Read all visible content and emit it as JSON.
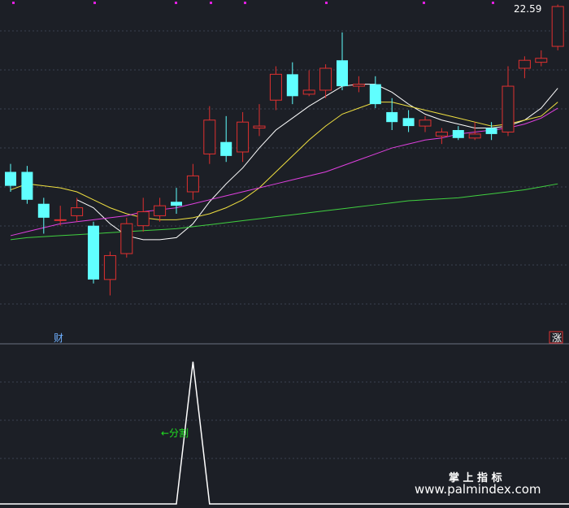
{
  "chart_data": [
    {
      "type": "candlestick",
      "title": "",
      "price_label": "22.59",
      "bottom_left_marker": "财",
      "bottom_right_marker": "涨",
      "ylim": [
        8,
        23.5
      ],
      "candles": [
        {
          "o": 15.2,
          "c": 14.5,
          "h": 15.6,
          "l": 14.2
        },
        {
          "o": 15.2,
          "c": 13.8,
          "h": 15.5,
          "l": 13.6
        },
        {
          "o": 13.6,
          "c": 12.9,
          "h": 13.9,
          "l": 12.1
        },
        {
          "o": 12.8,
          "c": 12.8,
          "h": 13.5,
          "l": 12.5
        },
        {
          "o": 13.0,
          "c": 13.4,
          "h": 13.9,
          "l": 12.7
        },
        {
          "o": 12.5,
          "c": 9.8,
          "h": 12.7,
          "l": 9.6
        },
        {
          "o": 9.8,
          "c": 11.0,
          "h": 11.2,
          "l": 9.0
        },
        {
          "o": 11.1,
          "c": 12.6,
          "h": 12.9,
          "l": 10.9
        },
        {
          "o": 12.5,
          "c": 13.2,
          "h": 13.9,
          "l": 12.2
        },
        {
          "o": 13.0,
          "c": 13.5,
          "h": 13.9,
          "l": 12.7
        },
        {
          "o": 13.7,
          "c": 13.5,
          "h": 14.4,
          "l": 13.1
        },
        {
          "o": 14.2,
          "c": 15.0,
          "h": 15.6,
          "l": 13.8
        },
        {
          "o": 16.1,
          "c": 17.8,
          "h": 18.5,
          "l": 15.6
        },
        {
          "o": 16.7,
          "c": 16.0,
          "h": 18.0,
          "l": 15.7
        },
        {
          "o": 16.2,
          "c": 17.7,
          "h": 18.2,
          "l": 15.7
        },
        {
          "o": 17.4,
          "c": 17.5,
          "h": 18.6,
          "l": 17.0
        },
        {
          "o": 18.8,
          "c": 20.1,
          "h": 20.5,
          "l": 18.3
        },
        {
          "o": 20.1,
          "c": 19.0,
          "h": 20.7,
          "l": 18.6
        },
        {
          "o": 19.1,
          "c": 19.3,
          "h": 20.3,
          "l": 19.0
        },
        {
          "o": 19.3,
          "c": 20.4,
          "h": 20.6,
          "l": 18.9
        },
        {
          "o": 20.8,
          "c": 19.5,
          "h": 22.2,
          "l": 19.3
        },
        {
          "o": 19.5,
          "c": 19.6,
          "h": 20.0,
          "l": 19.2
        },
        {
          "o": 19.6,
          "c": 18.6,
          "h": 20.0,
          "l": 18.4
        },
        {
          "o": 18.2,
          "c": 17.7,
          "h": 18.9,
          "l": 17.3
        },
        {
          "o": 17.9,
          "c": 17.5,
          "h": 18.3,
          "l": 17.2
        },
        {
          "o": 17.5,
          "c": 17.8,
          "h": 18.0,
          "l": 17.2
        },
        {
          "o": 17.0,
          "c": 17.2,
          "h": 17.4,
          "l": 16.6
        },
        {
          "o": 17.3,
          "c": 16.9,
          "h": 17.5,
          "l": 16.8
        },
        {
          "o": 16.9,
          "c": 17.1,
          "h": 17.7,
          "l": 16.8
        },
        {
          "o": 17.4,
          "c": 17.1,
          "h": 17.7,
          "l": 16.8
        },
        {
          "o": 17.2,
          "c": 19.5,
          "h": 20.5,
          "l": 17.0
        },
        {
          "o": 20.4,
          "c": 20.8,
          "h": 21.0,
          "l": 19.9
        },
        {
          "o": 20.7,
          "c": 20.9,
          "h": 21.3,
          "l": 20.5
        },
        {
          "o": 21.5,
          "c": 23.5,
          "h": 23.6,
          "l": 21.3
        }
      ],
      "ma_lines": [
        {
          "color": "#ffffff",
          "values": [
            null,
            null,
            null,
            null,
            13.8,
            13.4,
            12.6,
            12.0,
            11.8,
            11.8,
            11.9,
            12.6,
            13.7,
            14.6,
            15.4,
            16.4,
            17.3,
            17.9,
            18.5,
            19.0,
            19.5,
            19.6,
            19.6,
            19.2,
            18.6,
            18.1,
            17.8,
            17.6,
            17.4,
            17.4,
            17.5,
            17.8,
            18.4,
            19.4
          ]
        },
        {
          "color": "#f0e040",
          "values": [
            14.3,
            14.6,
            14.5,
            14.4,
            14.2,
            13.8,
            13.4,
            13.1,
            12.9,
            12.8,
            12.8,
            12.9,
            13.1,
            13.4,
            13.8,
            14.4,
            15.2,
            16.0,
            16.8,
            17.5,
            18.1,
            18.4,
            18.7,
            18.7,
            18.5,
            18.3,
            18.1,
            17.9,
            17.7,
            17.5,
            17.6,
            17.8,
            18.0,
            18.7
          ]
        },
        {
          "color": "#e040e0",
          "values": [
            12.0,
            12.2,
            12.4,
            12.6,
            12.7,
            12.8,
            12.9,
            13.0,
            13.2,
            13.3,
            13.4,
            13.6,
            13.8,
            14.0,
            14.2,
            14.4,
            14.6,
            14.8,
            15.0,
            15.2,
            15.5,
            15.8,
            16.1,
            16.4,
            16.6,
            16.8,
            16.9,
            17.1,
            17.2,
            17.3,
            17.4,
            17.6,
            17.9,
            18.4
          ]
        },
        {
          "color": "#40d040",
          "values": [
            11.8,
            11.9,
            11.95,
            12.0,
            12.05,
            12.1,
            12.15,
            12.2,
            12.25,
            12.3,
            12.35,
            12.45,
            12.55,
            12.65,
            12.75,
            12.85,
            12.95,
            13.05,
            13.15,
            13.25,
            13.35,
            13.45,
            13.55,
            13.65,
            13.75,
            13.8,
            13.85,
            13.9,
            14.0,
            14.1,
            14.2,
            14.3,
            14.45,
            14.6
          ]
        }
      ]
    },
    {
      "type": "line",
      "title": "",
      "annotation": "←分割",
      "values": [
        0,
        0,
        0,
        0,
        0,
        0,
        0,
        0,
        0,
        0,
        0,
        1,
        0,
        0,
        0,
        0,
        0,
        0,
        0,
        0,
        0,
        0,
        0,
        0,
        0,
        0,
        0,
        0,
        0,
        0,
        0,
        0,
        0,
        0
      ],
      "ylim": [
        0,
        1
      ]
    }
  ],
  "watermark": {
    "cn": "掌 上 指 标",
    "url": "www.palmindex.com"
  },
  "colors": {
    "up": "#e03030",
    "down": "#60ffff",
    "grid": "#3a4050",
    "divider": "#6a7080",
    "marker_top": "#e020e0",
    "annotation": "#20e020",
    "price_label": "#ffffff",
    "rise_marker": "#e03030"
  }
}
